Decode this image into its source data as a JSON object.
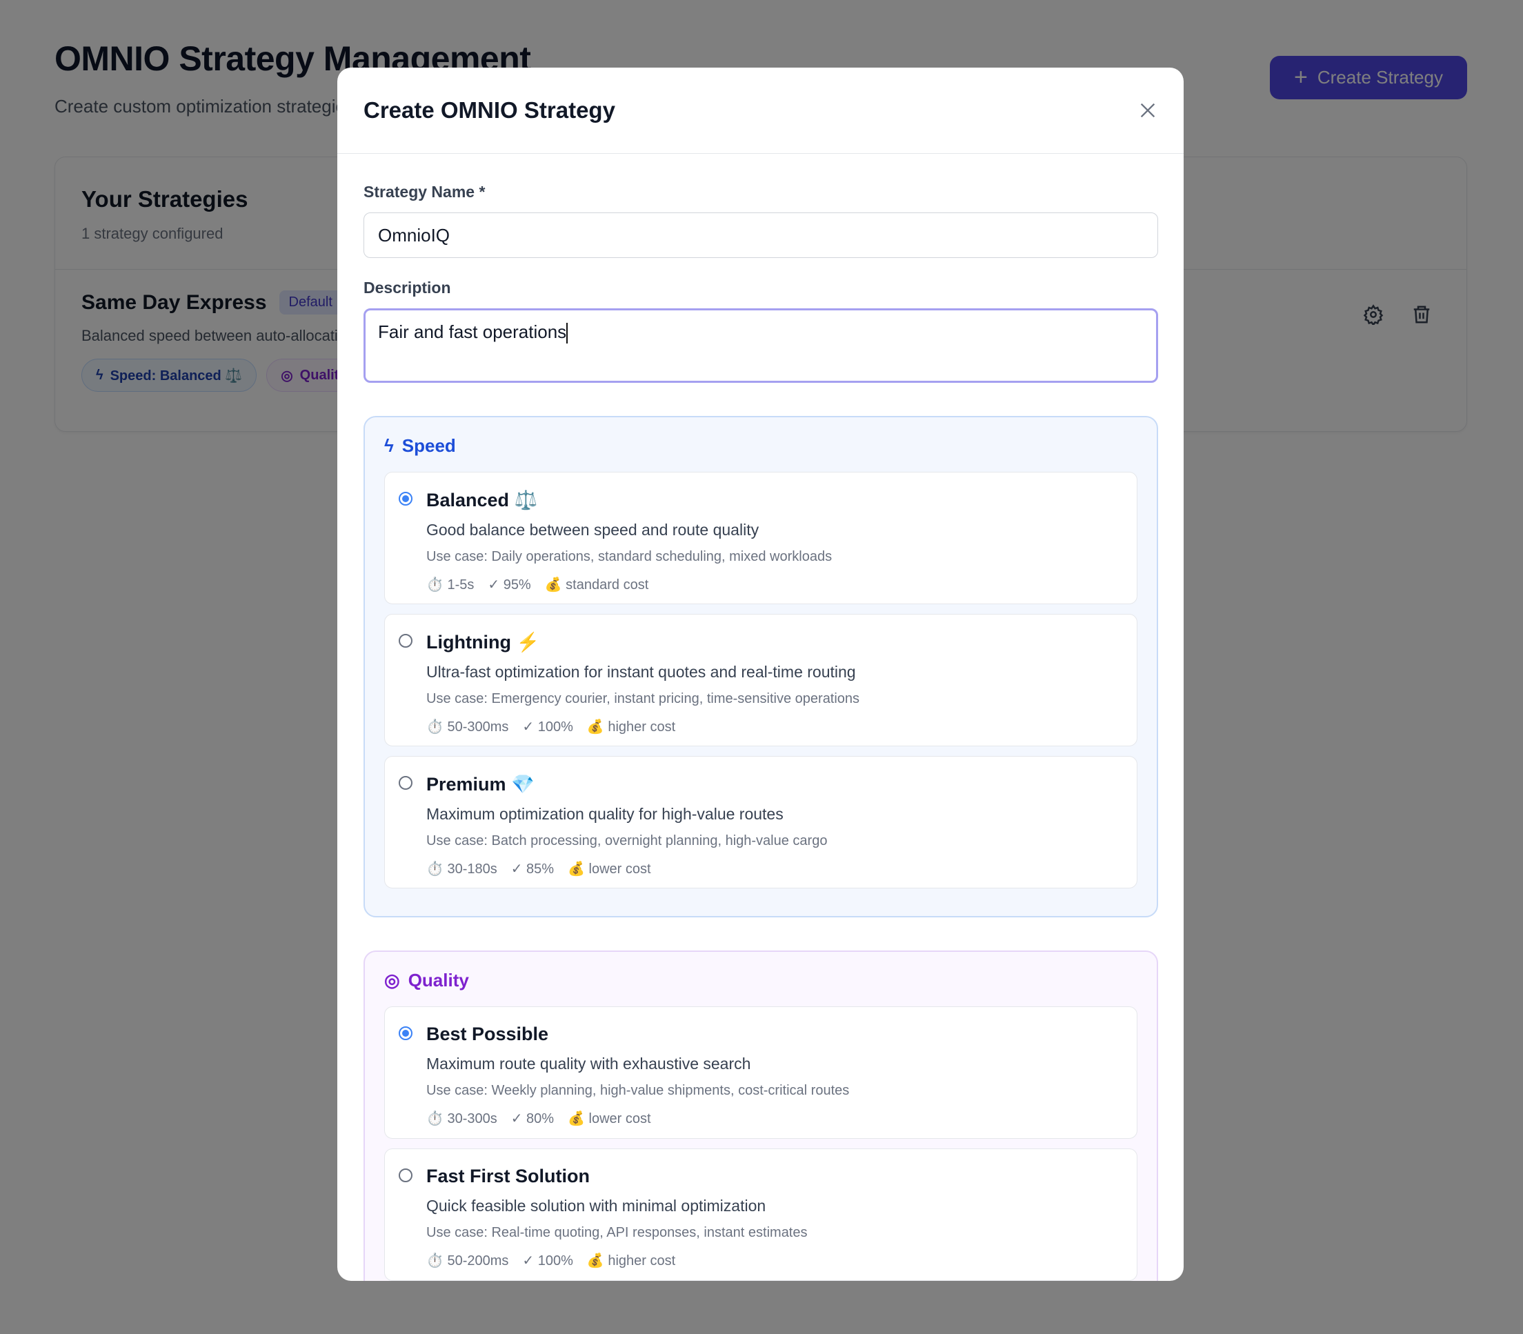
{
  "page": {
    "title": "OMNIO Strategy Management",
    "subtitle": "Create custom optimization strategies",
    "create_button": "Create Strategy"
  },
  "strategies": {
    "title": "Your Strategies",
    "count": "1 strategy configured",
    "items": [
      {
        "name": "Same Day Express",
        "badge": "Default",
        "description": "Balanced speed between auto-allocation",
        "speed_pill": "Speed: Balanced ⚖️",
        "quality_pill": "Quality"
      }
    ]
  },
  "modal": {
    "title": "Create OMNIO Strategy",
    "name_label": "Strategy Name *",
    "name_value": "OmnioIQ",
    "description_label": "Description",
    "description_value": "Fair and fast operations",
    "speed": {
      "title": "Speed",
      "options": [
        {
          "title": "Balanced ⚖️",
          "desc": "Good balance between speed and route quality",
          "use": "Use case: Daily operations, standard scheduling, mixed workloads",
          "time": "⏱️ 1-5s",
          "rate": "✓ 95%",
          "cost": "💰 standard cost",
          "selected": true
        },
        {
          "title": "Lightning ⚡",
          "desc": "Ultra-fast optimization for instant quotes and real-time routing",
          "use": "Use case: Emergency courier, instant pricing, time-sensitive operations",
          "time": "⏱️ 50-300ms",
          "rate": "✓ 100%",
          "cost": "💰 higher cost",
          "selected": false
        },
        {
          "title": "Premium 💎",
          "desc": "Maximum optimization quality for high-value routes",
          "use": "Use case: Batch processing, overnight planning, high-value cargo",
          "time": "⏱️ 30-180s",
          "rate": "✓ 85%",
          "cost": "💰 lower cost",
          "selected": false
        }
      ]
    },
    "quality": {
      "title": "Quality",
      "options": [
        {
          "title": "Best Possible",
          "desc": "Maximum route quality with exhaustive search",
          "use": "Use case: Weekly planning, high-value shipments, cost-critical routes",
          "time": "⏱️ 30-300s",
          "rate": "✓ 80%",
          "cost": "💰 lower cost",
          "selected": true
        },
        {
          "title": "Fast First Solution",
          "desc": "Quick feasible solution with minimal optimization",
          "use": "Use case: Real-time quoting, API responses, instant estimates",
          "time": "⏱️ 50-200ms",
          "rate": "✓ 100%",
          "cost": "💰 higher cost",
          "selected": false
        }
      ]
    }
  },
  "colors": {
    "accent": "#4f46e5",
    "speed": "#1d4ed8",
    "quality": "#7e22ce",
    "radio": "#3b82f6"
  }
}
